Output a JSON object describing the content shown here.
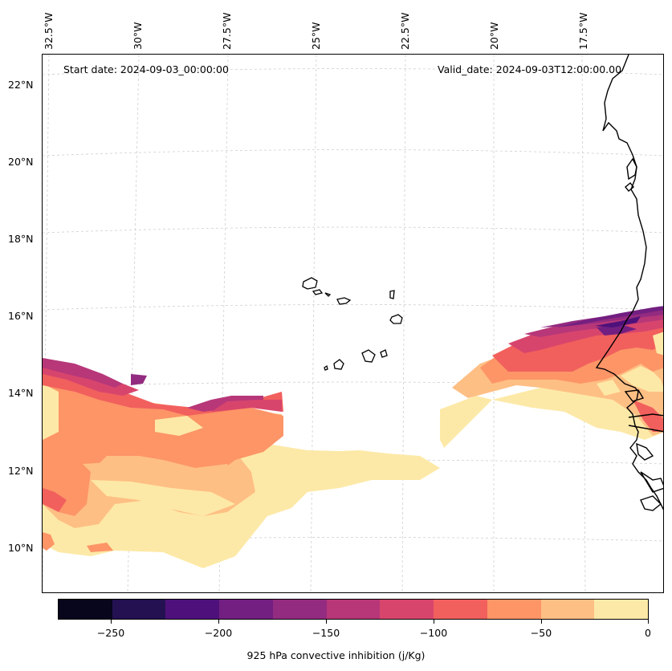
{
  "header": {
    "start_date": "Start date: 2024-09-03_00:00:00",
    "valid_date": "Valid_date: 2024-09-03T12:00:00.00"
  },
  "longitude_labels": [
    "32.5°W",
    "30°W",
    "27.5°W",
    "25°W",
    "22.5°W",
    "20°W",
    "17.5°W"
  ],
  "latitude_labels": [
    "22°N",
    "20°N",
    "18°N",
    "16°N",
    "14°N",
    "12°N",
    "10°N"
  ],
  "colorbar": {
    "label": "925 hPa convective inhibition (j/Kg)",
    "ticks": [
      "−250",
      "−200",
      "−150",
      "−100",
      "−50",
      "0"
    ],
    "colors": [
      "#07061c",
      "#231151",
      "#4e117b",
      "#721f81",
      "#932b80",
      "#b73779",
      "#d8456c",
      "#f1605d",
      "#fd9567",
      "#febf84",
      "#fde9a7"
    ]
  },
  "map_features": [
    "coastline-africa",
    "cape-verde-islands",
    "cin-field-west",
    "cin-field-east"
  ]
}
